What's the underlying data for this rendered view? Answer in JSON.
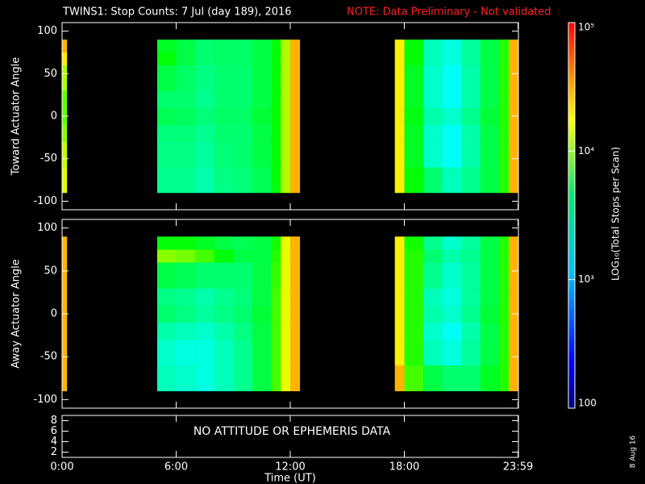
{
  "chart_data": {
    "type": "spectrogram",
    "title": "TWINS1: Stop Counts:  7 Jul (day 189), 2016",
    "note": "NOTE: Data Preliminary - Not validated",
    "xlabel": "Time (UT)",
    "xlim": [
      0,
      24
    ],
    "xticks": [
      {
        "value": 0,
        "label": "0:00"
      },
      {
        "value": 6,
        "label": "6:00"
      },
      {
        "value": 12,
        "label": "12:00"
      },
      {
        "value": 18,
        "label": "18:00"
      },
      {
        "value": 23.98,
        "label": "23:59"
      }
    ],
    "colormap": "rainbow",
    "clim": [
      100,
      100000
    ],
    "log_color": true,
    "colorbar_label": "LOG₁₀(Total Stops per Scan)",
    "colorbar_ticks": [
      100,
      {
        "value": 1000,
        "label": "10³"
      },
      {
        "value": 10000,
        "label": "10⁴"
      },
      {
        "value": 100000,
        "label": "10⁵"
      }
    ],
    "time_edges": [
      0,
      0.25,
      5,
      6,
      7,
      8,
      9,
      10,
      11,
      11.5,
      12,
      12.5,
      17.5,
      18,
      19,
      20,
      21,
      22,
      23,
      23.5,
      24
    ],
    "angle_edges": [
      -90,
      -60,
      -30,
      -10,
      10,
      30,
      60,
      75,
      90
    ],
    "panels": [
      {
        "ylabel": "Toward Actuator Angle",
        "ylim": [
          -110,
          110
        ],
        "yticks": [
          -100,
          -50,
          0,
          50,
          100
        ],
        "values": [
          [
            15000,
            null,
            1200,
            1200,
            1000,
            1300,
            1400,
            1800,
            3000,
            10000,
            30000,
            null,
            20000,
            3000,
            1500,
            900,
            1200,
            2000,
            4000,
            30000
          ],
          [
            12000,
            null,
            1300,
            1300,
            1100,
            1400,
            1500,
            2000,
            3000,
            10000,
            30000,
            null,
            20000,
            2500,
            800,
            600,
            1000,
            2000,
            4000,
            30000
          ],
          [
            8000,
            null,
            1400,
            1400,
            1200,
            1500,
            1500,
            2000,
            3000,
            10000,
            30000,
            null,
            20000,
            2500,
            800,
            600,
            1000,
            2000,
            4000,
            30000
          ],
          [
            6000,
            null,
            1800,
            1700,
            1400,
            1600,
            1600,
            2200,
            3200,
            10000,
            30000,
            null,
            20000,
            2800,
            1000,
            800,
            1200,
            2200,
            4000,
            30000
          ],
          [
            6000,
            null,
            1500,
            1500,
            1200,
            1500,
            1500,
            2000,
            3000,
            10000,
            30000,
            null,
            20000,
            2500,
            800,
            600,
            1000,
            2000,
            4000,
            30000
          ],
          [
            10000,
            null,
            2000,
            1600,
            1300,
            1500,
            1500,
            2000,
            3000,
            10000,
            30000,
            null,
            20000,
            2500,
            800,
            600,
            1000,
            2000,
            4000,
            30000
          ],
          [
            20000,
            null,
            3000,
            2000,
            1500,
            1600,
            1600,
            2000,
            3000,
            10000,
            30000,
            null,
            20000,
            3000,
            900,
            700,
            1100,
            2000,
            4000,
            30000
          ],
          [
            30000,
            null,
            2500,
            2000,
            1500,
            1600,
            1600,
            2000,
            3000,
            10000,
            30000,
            null,
            20000,
            3000,
            900,
            700,
            1100,
            2000,
            4000,
            30000
          ]
        ]
      },
      {
        "ylabel": "Away Actuator Angle",
        "ylim": [
          -110,
          110
        ],
        "yticks": [
          -100,
          -50,
          0,
          50,
          100
        ],
        "values": [
          [
            30000,
            null,
            900,
            800,
            700,
            900,
            1200,
            2000,
            5000,
            15000,
            30000,
            null,
            30000,
            5000,
            2000,
            1500,
            1500,
            2500,
            4000,
            30000
          ],
          [
            30000,
            null,
            800,
            700,
            700,
            900,
            1200,
            2000,
            5000,
            15000,
            30000,
            null,
            20000,
            4000,
            900,
            700,
            1100,
            2000,
            4000,
            30000
          ],
          [
            30000,
            null,
            1000,
            900,
            800,
            1000,
            1300,
            2000,
            5000,
            15000,
            30000,
            null,
            20000,
            4000,
            800,
            600,
            1000,
            2000,
            4000,
            30000
          ],
          [
            30000,
            null,
            1500,
            1300,
            1100,
            1300,
            1500,
            2200,
            5000,
            15000,
            30000,
            null,
            20000,
            4000,
            1000,
            800,
            1200,
            2200,
            4000,
            30000
          ],
          [
            30000,
            null,
            1300,
            1200,
            1000,
            1200,
            1400,
            2000,
            5000,
            15000,
            30000,
            null,
            20000,
            4000,
            900,
            700,
            1100,
            2000,
            4000,
            30000
          ],
          [
            30000,
            null,
            2000,
            1800,
            1500,
            1500,
            1500,
            2000,
            4500,
            15000,
            30000,
            null,
            20000,
            4000,
            1200,
            800,
            1100,
            2000,
            4000,
            30000
          ],
          [
            30000,
            null,
            8000,
            7000,
            5000,
            3000,
            2000,
            2000,
            4000,
            15000,
            30000,
            null,
            20000,
            4000,
            1500,
            1000,
            1200,
            2000,
            4000,
            30000
          ],
          [
            30000,
            null,
            3000,
            3000,
            2500,
            2000,
            1800,
            2000,
            3500,
            15000,
            30000,
            null,
            20000,
            3500,
            1200,
            800,
            1100,
            2000,
            4000,
            30000
          ]
        ]
      }
    ],
    "status_panel": {
      "ylim": [
        1,
        9
      ],
      "yticks": [
        2,
        4,
        6,
        8
      ],
      "message": "NO ATTITUDE OR EPHEMERIS DATA"
    },
    "date": "8 Aug 16"
  }
}
